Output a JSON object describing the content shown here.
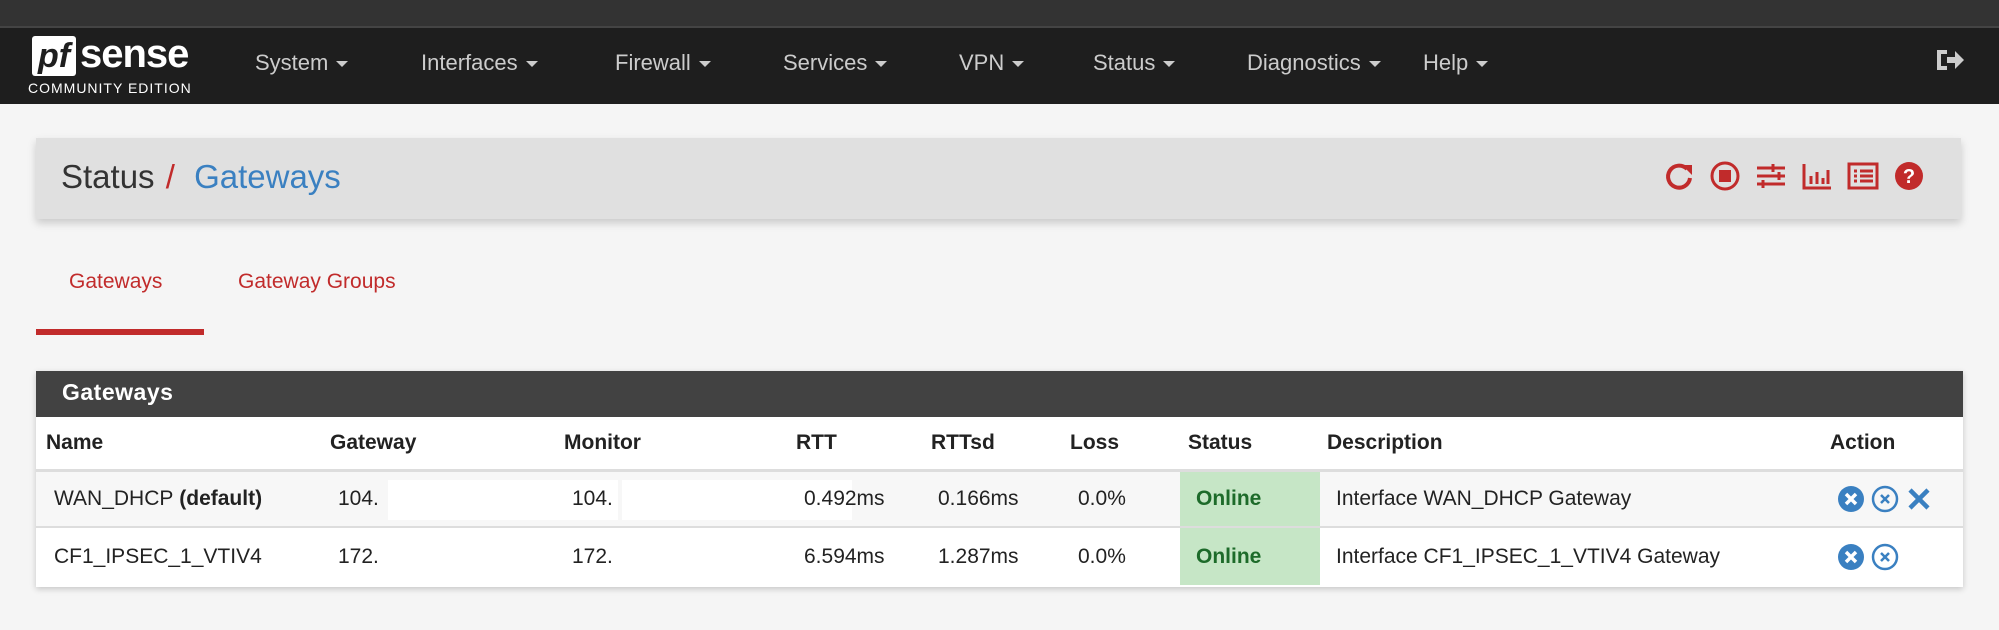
{
  "navbar": {
    "logo": {
      "brand": "pfsense",
      "edition": "COMMUNITY EDITION"
    },
    "items": [
      {
        "label": "System"
      },
      {
        "label": "Interfaces"
      },
      {
        "label": "Firewall"
      },
      {
        "label": "Services"
      },
      {
        "label": "VPN"
      },
      {
        "label": "Status"
      },
      {
        "label": "Diagnostics"
      },
      {
        "label": "Help"
      }
    ],
    "logout_icon": "sign-out-icon"
  },
  "header": {
    "breadcrumb_parent": "Status",
    "separator": "/",
    "title": "Gateways",
    "icons": [
      "refresh-icon",
      "stop-circle-icon",
      "sliders-icon",
      "bar-chart-icon",
      "list-icon",
      "help-icon"
    ],
    "icon_color": "#c12b2b"
  },
  "tabs": [
    {
      "label": "Gateways",
      "active": true
    },
    {
      "label": "Gateway Groups",
      "active": false
    }
  ],
  "panel": {
    "title": "Gateways",
    "columns": [
      "Name",
      "Gateway",
      "Monitor",
      "RTT",
      "RTTsd",
      "Loss",
      "Status",
      "Description",
      "Action"
    ],
    "rows": [
      {
        "name": "WAN_DHCP",
        "name_suffix": "(default)",
        "gateway": "104.",
        "monitor": "104.",
        "rtt": "0.492ms",
        "rttsd": "0.166ms",
        "loss": "0.0%",
        "status": "Online",
        "description": "Interface WAN_DHCP Gateway",
        "actions": [
          "mark-down-icon",
          "kill-states-icon",
          "remove-icon"
        ]
      },
      {
        "name": "CF1_IPSEC_1_VTIV4",
        "name_suffix": "",
        "gateway": "172.",
        "monitor": "172.",
        "rtt": "6.594ms",
        "rttsd": "1.287ms",
        "loss": "0.0%",
        "status": "Online",
        "description": "Interface CF1_IPSEC_1_VTIV4 Gateway",
        "actions": [
          "mark-down-icon",
          "kill-states-icon"
        ]
      }
    ],
    "status_bg": "#c6e6c6",
    "action_color": "#3a80c1"
  }
}
